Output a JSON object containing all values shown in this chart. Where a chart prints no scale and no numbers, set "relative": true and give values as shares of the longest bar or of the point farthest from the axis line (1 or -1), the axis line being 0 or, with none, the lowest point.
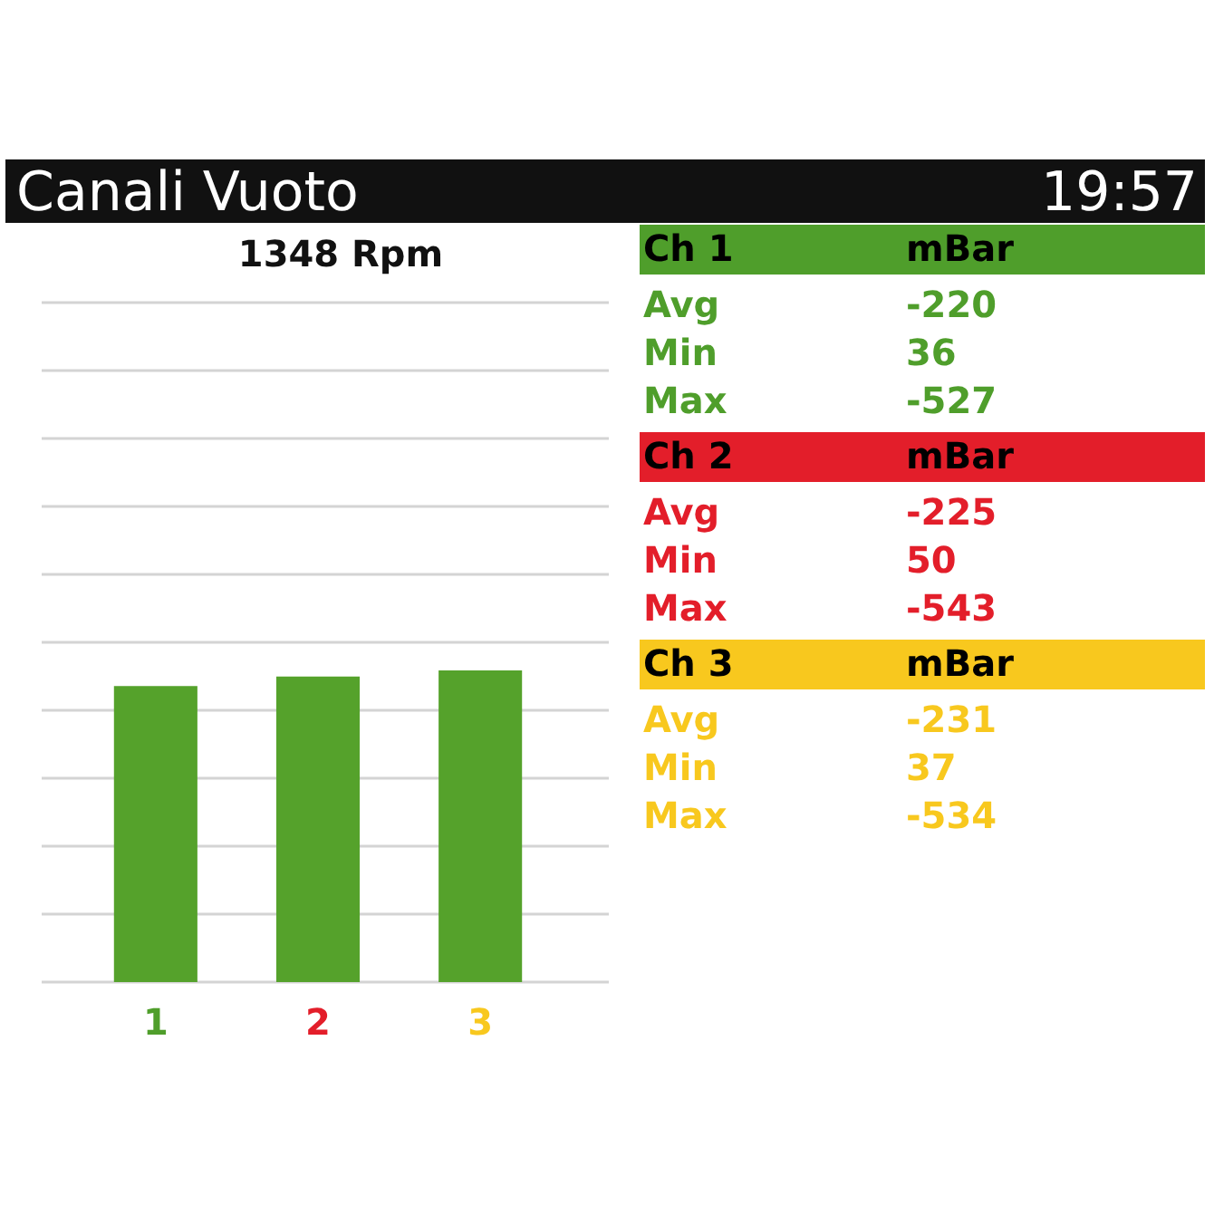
{
  "chart_data": [
    {
      "type": "other",
      "title": "Canali Vuoto",
      "annotations": [
        "19:57"
      ]
    },
    {
      "type": "bar",
      "title": "1348 Rpm",
      "categories": [
        "1",
        "2",
        "3"
      ],
      "values": [
        0.95,
        0.98,
        1
      ],
      "color": "#55a22b",
      "relative": true,
      "grid": "y"
    },
    {
      "type": "other",
      "categories": [
        "Avg",
        "Min",
        "Max"
      ],
      "ylabel": "mBar",
      "series": [
        {
          "name": "Ch 1",
          "color": "#4f9e2b",
          "values": [
            -220,
            36,
            -527
          ]
        },
        {
          "name": "Ch 2",
          "color": "#e31e2a",
          "values": [
            -225,
            50,
            -543
          ]
        },
        {
          "name": "Ch 3",
          "color": "#f8c81e",
          "values": [
            -231,
            37,
            -534
          ]
        }
      ],
      "data_labels": true
    }
  ]
}
